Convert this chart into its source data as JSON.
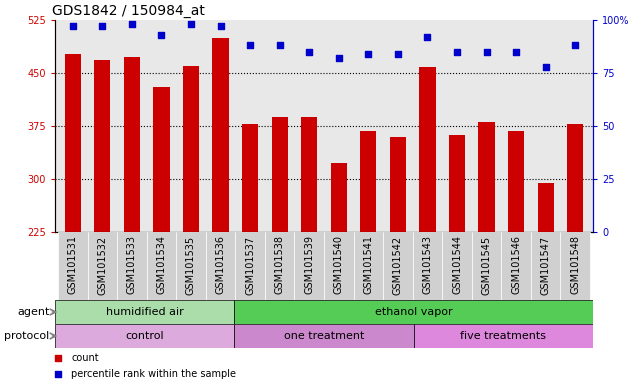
{
  "title": "GDS1842 / 150984_at",
  "samples": [
    "GSM101531",
    "GSM101532",
    "GSM101533",
    "GSM101534",
    "GSM101535",
    "GSM101536",
    "GSM101537",
    "GSM101538",
    "GSM101539",
    "GSM101540",
    "GSM101541",
    "GSM101542",
    "GSM101543",
    "GSM101544",
    "GSM101545",
    "GSM101546",
    "GSM101547",
    "GSM101548"
  ],
  "counts": [
    477,
    468,
    473,
    430,
    460,
    500,
    378,
    388,
    388,
    322,
    368,
    360,
    458,
    362,
    380,
    368,
    295,
    378
  ],
  "percentiles": [
    97,
    97,
    98,
    93,
    98,
    97,
    88,
    88,
    85,
    82,
    84,
    84,
    92,
    85,
    85,
    85,
    78,
    88
  ],
  "ylim_left": [
    225,
    525
  ],
  "ylim_right": [
    0,
    100
  ],
  "yticks_left": [
    225,
    300,
    375,
    450,
    525
  ],
  "yticks_right": [
    0,
    25,
    50,
    75,
    100
  ],
  "bar_color": "#cc0000",
  "dot_color": "#0000cc",
  "bg_color": "#e8e8e8",
  "agent_groups": [
    {
      "label": "humidified air",
      "start": 0,
      "end": 6,
      "color": "#aaddaa"
    },
    {
      "label": "ethanol vapor",
      "start": 6,
      "end": 18,
      "color": "#55cc55"
    }
  ],
  "protocol_groups": [
    {
      "label": "control",
      "start": 0,
      "end": 6,
      "color": "#ddaadd"
    },
    {
      "label": "one treatment",
      "start": 6,
      "end": 12,
      "color": "#cc88cc"
    },
    {
      "label": "five treatments",
      "start": 12,
      "end": 18,
      "color": "#dd88dd"
    }
  ],
  "legend_items": [
    {
      "label": "count",
      "color": "#cc0000"
    },
    {
      "label": "percentile rank within the sample",
      "color": "#0000cc"
    }
  ],
  "title_fontsize": 10,
  "tick_fontsize": 7,
  "annot_fontsize": 8,
  "bar_width": 0.55,
  "dot_size": 25
}
